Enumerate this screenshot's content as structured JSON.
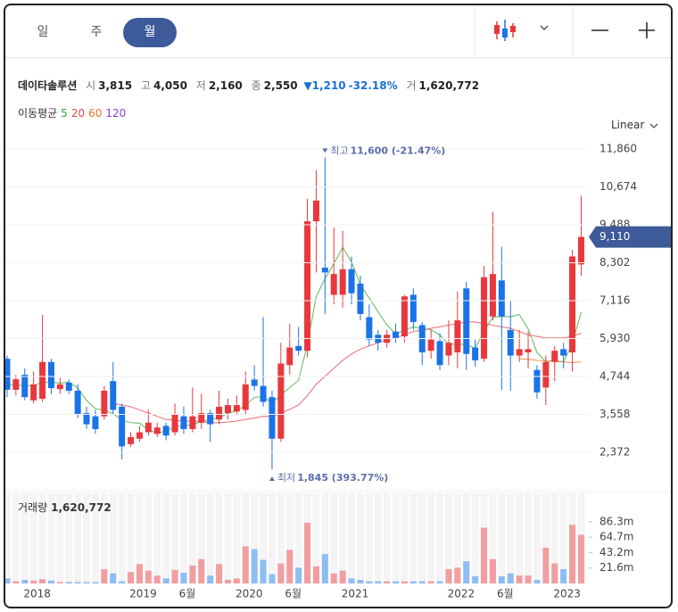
{
  "header": {
    "tabs": [
      "일",
      "주",
      "월"
    ],
    "active_tab": 2,
    "name": "데이타솔루션",
    "fields": [
      {
        "label": "시",
        "value": "3,815"
      },
      {
        "label": "고",
        "value": "4,050"
      },
      {
        "label": "저",
        "value": "2,160"
      },
      {
        "label": "종",
        "value": "2,550"
      }
    ],
    "change": "▼1,210",
    "change_pct": "-32.18%",
    "volume_field": {
      "label": "거",
      "value": "1,620,772"
    }
  },
  "chart_data": {
    "type": "candlestick",
    "scale": "Linear",
    "ma_title": "이동평균",
    "categories": [
      null,
      null,
      null,
      "2018",
      null,
      null,
      null,
      null,
      null,
      null,
      null,
      null,
      null,
      null,
      null,
      "2019",
      null,
      null,
      null,
      null,
      "6월",
      null,
      null,
      null,
      null,
      null,
      null,
      "2020",
      null,
      null,
      null,
      null,
      "6월",
      null,
      null,
      null,
      null,
      null,
      null,
      "2021",
      null,
      null,
      null,
      null,
      null,
      null,
      null,
      null,
      null,
      null,
      null,
      "2022",
      null,
      null,
      null,
      null,
      "6월",
      null,
      null,
      null,
      null,
      null,
      null,
      "2023",
      null,
      null
    ],
    "open": [
      5300,
      4330,
      4800,
      4000,
      4050,
      5200,
      4350,
      4550,
      4300,
      3600,
      3500,
      3500,
      4600,
      3800,
      2630,
      2800,
      3000,
      2950,
      3200,
      3000,
      3500,
      3100,
      3300,
      3600,
      3400,
      3600,
      3650,
      3700,
      4650,
      4450,
      4100,
      2800,
      5100,
      5700,
      5550,
      9600,
      8150,
      7300,
      7300,
      8100,
      7650,
      6600,
      6050,
      5800,
      6150,
      6000,
      7300,
      6350,
      5550,
      5850,
      5400,
      5500,
      7500,
      5650,
      5300,
      6620,
      7750,
      6200,
      5400,
      5500,
      4950,
      4400,
      5200,
      5600,
      5500,
      8250
    ],
    "high": [
      5400,
      4800,
      5000,
      4900,
      6670,
      5300,
      4700,
      4650,
      4500,
      3800,
      3700,
      4450,
      5200,
      3900,
      3000,
      3200,
      3700,
      3300,
      3300,
      3900,
      3800,
      4400,
      4200,
      3700,
      4300,
      4050,
      4150,
      4900,
      5100,
      6600,
      4300,
      5800,
      6400,
      6300,
      10300,
      11200,
      11600,
      9400,
      9300,
      8500,
      7900,
      7000,
      6200,
      6200,
      6400,
      7300,
      7500,
      6450,
      6200,
      6100,
      6500,
      7400,
      7700,
      5900,
      8200,
      9900,
      8800,
      7100,
      6200,
      6150,
      5100,
      5400,
      5700,
      5800,
      8700,
      10400
    ],
    "low": [
      4100,
      4150,
      4000,
      3900,
      3950,
      4200,
      4200,
      4200,
      3450,
      3100,
      2950,
      3400,
      3550,
      2150,
      2550,
      2700,
      2900,
      2850,
      2750,
      2900,
      2950,
      3000,
      3100,
      2700,
      3250,
      3400,
      3550,
      3550,
      4300,
      3800,
      1845,
      2700,
      4800,
      5400,
      5350,
      8000,
      6700,
      7000,
      6900,
      7000,
      6500,
      5700,
      5550,
      5650,
      5800,
      5800,
      6200,
      5100,
      5300,
      4950,
      5100,
      5000,
      4950,
      5050,
      5200,
      6500,
      4330,
      4300,
      5200,
      5000,
      4050,
      3850,
      4600,
      5000,
      4900,
      7900
    ],
    "close": [
      4330,
      4660,
      4100,
      4500,
      5200,
      4380,
      4500,
      4300,
      3550,
      3250,
      3100,
      4300,
      3700,
      2560,
      2850,
      3000,
      3300,
      3150,
      2900,
      3550,
      3100,
      3500,
      3600,
      3250,
      3800,
      3850,
      3850,
      4500,
      4450,
      3950,
      2800,
      5150,
      5650,
      5550,
      9600,
      10250,
      8000,
      7950,
      8100,
      7350,
      6700,
      5900,
      5800,
      6050,
      5950,
      7250,
      6450,
      5500,
      5900,
      5100,
      5800,
      6500,
      5450,
      5250,
      7850,
      7950,
      6620,
      5400,
      5600,
      5600,
      4250,
      5200,
      5550,
      5400,
      8500,
      9110
    ],
    "volume": [
      7,
      3,
      5,
      4,
      6,
      4,
      2,
      2,
      2,
      2,
      2,
      20,
      14,
      3,
      16,
      27,
      18,
      11,
      7,
      19,
      15,
      25,
      34,
      11,
      27,
      5,
      7,
      52,
      48,
      33,
      13,
      28,
      47,
      22,
      85,
      24,
      41,
      14,
      18,
      7,
      5,
      3,
      3,
      3,
      3,
      3,
      3,
      3,
      3,
      3,
      20,
      22,
      31,
      10,
      78,
      34,
      10,
      14,
      11,
      11,
      5,
      50,
      28,
      20,
      82,
      68
    ],
    "up_color": "#e8383d",
    "down_color": "#1a73e8",
    "volume_up_color": "#f29ea1",
    "volume_down_color": "#8dbdf2",
    "ma": [
      {
        "name": "5",
        "color": "#3aa935",
        "values": [
          4500,
          4480,
          4450,
          4470,
          4558,
          4568,
          4536,
          4576,
          4386,
          3996,
          3740,
          3700,
          3580,
          3382,
          3302,
          3282,
          3082,
          2972,
          3040,
          3180,
          3200,
          3240,
          3330,
          3400,
          3450,
          3600,
          3670,
          3850,
          4090,
          4120,
          3910,
          4170,
          4400,
          4620,
          5750,
          7240,
          7810,
          8270,
          8780,
          8330,
          7620,
          7200,
          6770,
          6360,
          6080,
          6190,
          6300,
          6240,
          6210,
          6040,
          5750,
          5760,
          5750,
          5620,
          6170,
          6600,
          6624,
          6614,
          6684,
          6234,
          5494,
          5210,
          5240,
          5200,
          5780,
          6752
        ]
      },
      {
        "name": "20",
        "color": "#e5484d",
        "values": [
          null,
          null,
          null,
          null,
          null,
          null,
          null,
          null,
          null,
          null,
          null,
          null,
          3900,
          3850,
          3800,
          3700,
          3600,
          3500,
          3400,
          3380,
          3350,
          3350,
          3330,
          3300,
          3300,
          3320,
          3350,
          3400,
          3450,
          3500,
          3500,
          3600,
          3720,
          3850,
          4150,
          4500,
          4750,
          5000,
          5250,
          5450,
          5600,
          5700,
          5800,
          5900,
          5950,
          6050,
          6150,
          6200,
          6250,
          6300,
          6350,
          6400,
          6450,
          6450,
          6400,
          6350,
          6300,
          6250,
          6150,
          6050,
          6000,
          5950,
          5950,
          5950,
          6000,
          6100
        ]
      },
      {
        "name": "60",
        "color": "#e8762e",
        "values": [
          null,
          null,
          null,
          null,
          null,
          null,
          null,
          null,
          null,
          null,
          null,
          null,
          null,
          null,
          null,
          null,
          null,
          null,
          null,
          null,
          null,
          null,
          null,
          null,
          null,
          null,
          null,
          null,
          null,
          null,
          null,
          null,
          null,
          null,
          null,
          null,
          null,
          null,
          null,
          null,
          null,
          null,
          null,
          null,
          null,
          null,
          null,
          null,
          null,
          null,
          null,
          null,
          null,
          null,
          null,
          null,
          null,
          null,
          5300,
          5280,
          5250,
          5230,
          5220,
          5200,
          5180,
          5200
        ]
      },
      {
        "name": "120",
        "color": "#8b3fe0"
      }
    ],
    "ylim": [
      1230,
      12195
    ],
    "yticks": [
      {
        "value": 11860,
        "label": "11,860"
      },
      {
        "value": 10674,
        "label": "10,674"
      },
      {
        "value": 9488,
        "label": "9,488"
      },
      {
        "value": 8302,
        "label": "8,302"
      },
      {
        "value": 7116,
        "label": "7,116"
      },
      {
        "value": 5930,
        "label": "5,930"
      },
      {
        "value": 4744,
        "label": "4,744"
      },
      {
        "value": 3558,
        "label": "3,558"
      },
      {
        "value": 2372,
        "label": "2,372"
      }
    ],
    "current_price": {
      "value": 9110,
      "label": "9,110"
    },
    "max_label": {
      "prefix": "최고",
      "value": 11600,
      "label": "11,600 (-21.47%)"
    },
    "min_label": {
      "prefix": "최저",
      "value": 1845,
      "label": "1,845 (393.77%)"
    },
    "volume_legend": {
      "name": "거래량",
      "value": "1,620,772"
    },
    "vlim": [
      0,
      126
    ],
    "vticks": [
      {
        "value": 86.3,
        "label": "86.3m"
      },
      {
        "value": 64.7,
        "label": "64.7m"
      },
      {
        "value": 43.2,
        "label": "43.2m"
      },
      {
        "value": 21.6,
        "label": "21.6m"
      }
    ],
    "grid": true
  }
}
